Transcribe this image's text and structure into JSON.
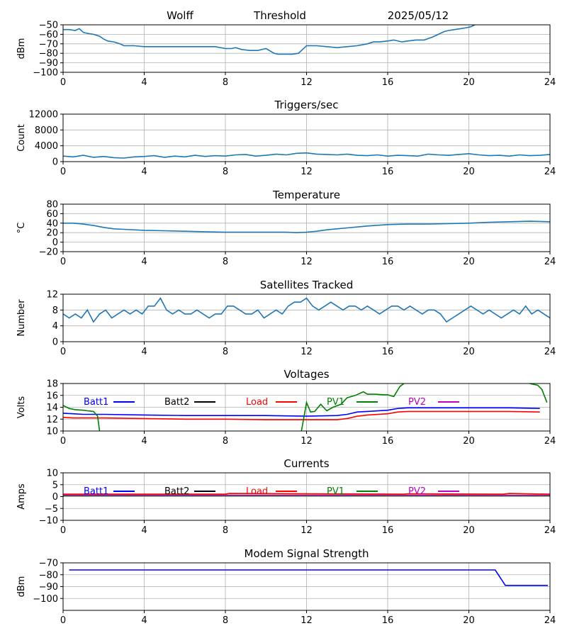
{
  "header": {
    "station": "Wolff",
    "title": "Threshold",
    "date": "2025/05/12"
  },
  "chart_data": [
    {
      "type": "line",
      "title": "",
      "xlabel": "",
      "ylabel": "dBm",
      "xlim": [
        0,
        24
      ],
      "xticks": [
        "0",
        "4",
        "8",
        "12",
        "16",
        "20",
        "24"
      ],
      "ylim": [
        -100,
        -50
      ],
      "yticks": [
        "−100",
        "−90",
        "−80",
        "−70",
        "−60",
        "−50"
      ],
      "grid": true,
      "series": [
        {
          "color": "#1f77b4",
          "x": [
            0,
            0.3,
            0.6,
            0.8,
            1.0,
            1.2,
            1.5,
            1.8,
            2.0,
            2.2,
            2.5,
            2.8,
            3.0,
            3.5,
            4.0,
            5.0,
            6.0,
            7.0,
            7.5,
            8.0,
            8.3,
            8.5,
            8.8,
            9.2,
            9.6,
            10.0,
            10.4,
            10.6,
            10.8,
            11.0,
            11.3,
            11.6,
            11.8,
            12.0,
            12.5,
            13.0,
            13.5,
            14.0,
            14.5,
            15.0,
            15.3,
            15.6,
            16.0,
            16.3,
            16.7,
            17.0,
            17.4,
            17.8,
            18.2,
            18.5,
            18.8,
            19.0,
            19.3,
            19.6,
            19.9,
            20.1,
            20.3
          ],
          "y": [
            -55,
            -55,
            -56,
            -54,
            -58,
            -59,
            -60,
            -62,
            -65,
            -67,
            -68,
            -70,
            -72,
            -72,
            -73,
            -73,
            -73,
            -73,
            -73,
            -75,
            -75,
            -74,
            -76,
            -77,
            -77,
            -75,
            -80,
            -81,
            -81,
            -81,
            -81,
            -80,
            -76,
            -72,
            -72,
            -73,
            -74,
            -73,
            -72,
            -70,
            -68,
            -68,
            -67,
            -66,
            -68,
            -67,
            -66,
            -66,
            -63,
            -60,
            -57,
            -56,
            -55,
            -54,
            -53,
            -52,
            -50
          ]
        }
      ]
    },
    {
      "type": "line",
      "title": "Triggers/sec",
      "xlabel": "",
      "ylabel": "Count",
      "xlim": [
        0,
        24
      ],
      "xticks": [
        "0",
        "4",
        "8",
        "12",
        "16",
        "20",
        "24"
      ],
      "ylim": [
        0,
        12000
      ],
      "yticks": [
        "0",
        "4000",
        "8000",
        "12000"
      ],
      "grid": true,
      "series": [
        {
          "color": "#1f77b4",
          "x": [
            0,
            0.5,
            1.0,
            1.5,
            2.0,
            2.5,
            3.0,
            3.5,
            4.0,
            4.5,
            5.0,
            5.5,
            6.0,
            6.5,
            7.0,
            7.5,
            8.0,
            8.5,
            9.0,
            9.5,
            10.0,
            10.5,
            11.0,
            11.5,
            12.0,
            12.5,
            13.0,
            13.5,
            14.0,
            14.5,
            15.0,
            15.5,
            16.0,
            16.5,
            17.0,
            17.5,
            18.0,
            18.5,
            19.0,
            19.5,
            20.0,
            20.5,
            21.0,
            21.5,
            22.0,
            22.5,
            23.0,
            23.5,
            24.0
          ],
          "y": [
            1400,
            1200,
            1600,
            1100,
            1300,
            1000,
            900,
            1200,
            1300,
            1500,
            1100,
            1400,
            1200,
            1600,
            1300,
            1500,
            1400,
            1700,
            1800,
            1400,
            1600,
            1900,
            1700,
            2100,
            2200,
            1900,
            1800,
            1700,
            1900,
            1600,
            1500,
            1700,
            1400,
            1600,
            1500,
            1400,
            1900,
            1700,
            1600,
            1800,
            2000,
            1700,
            1500,
            1600,
            1400,
            1700,
            1500,
            1600,
            1800
          ]
        }
      ]
    },
    {
      "type": "line",
      "title": "Temperature",
      "xlabel": "",
      "ylabel": "°C",
      "xlim": [
        0,
        24
      ],
      "xticks": [
        "0",
        "4",
        "8",
        "12",
        "16",
        "20",
        "24"
      ],
      "ylim": [
        -20,
        80
      ],
      "yticks": [
        "−20",
        "0",
        "20",
        "40",
        "60",
        "80"
      ],
      "grid": true,
      "series": [
        {
          "color": "#1f77b4",
          "x": [
            0,
            0.5,
            1.0,
            1.5,
            2.0,
            2.5,
            3.0,
            4.0,
            5.0,
            6.0,
            7.0,
            8.0,
            9.0,
            10.0,
            11.0,
            11.5,
            12.0,
            12.5,
            13.0,
            13.5,
            14.0,
            15.0,
            16.0,
            17.0,
            18.0,
            19.0,
            20.0,
            21.0,
            22.0,
            23.0,
            24.0
          ],
          "y": [
            40,
            40,
            38,
            35,
            31,
            28,
            27,
            25,
            24,
            23,
            22,
            21,
            21,
            21,
            21,
            20,
            21,
            23,
            26,
            28,
            30,
            34,
            37,
            38,
            38,
            39,
            40,
            42,
            43,
            44,
            43
          ]
        }
      ]
    },
    {
      "type": "line",
      "title": "Satellites Tracked",
      "xlabel": "",
      "ylabel": "Number",
      "xlim": [
        0,
        24
      ],
      "xticks": [
        "0",
        "4",
        "8",
        "12",
        "16",
        "20",
        "24"
      ],
      "ylim": [
        0,
        12
      ],
      "yticks": [
        "0",
        "4",
        "8",
        "12"
      ],
      "grid": true,
      "series": [
        {
          "color": "#1f77b4",
          "x": [
            0,
            0.3,
            0.6,
            0.9,
            1.2,
            1.5,
            1.8,
            2.1,
            2.4,
            2.7,
            3.0,
            3.3,
            3.6,
            3.9,
            4.2,
            4.5,
            4.8,
            5.1,
            5.4,
            5.7,
            6.0,
            6.3,
            6.6,
            6.9,
            7.2,
            7.5,
            7.8,
            8.1,
            8.4,
            8.7,
            9.0,
            9.3,
            9.6,
            9.9,
            10.2,
            10.5,
            10.8,
            11.1,
            11.4,
            11.7,
            12.0,
            12.3,
            12.6,
            12.9,
            13.2,
            13.5,
            13.8,
            14.1,
            14.4,
            14.7,
            15.0,
            15.3,
            15.6,
            15.9,
            16.2,
            16.5,
            16.8,
            17.1,
            17.4,
            17.7,
            18.0,
            18.3,
            18.6,
            18.9,
            19.2,
            19.5,
            19.8,
            20.1,
            20.4,
            20.7,
            21.0,
            21.3,
            21.6,
            21.9,
            22.2,
            22.5,
            22.8,
            23.1,
            23.4,
            23.7,
            24.0
          ],
          "y": [
            7,
            6,
            7,
            6,
            8,
            5,
            7,
            8,
            6,
            7,
            8,
            7,
            8,
            7,
            9,
            9,
            11,
            8,
            7,
            8,
            7,
            7,
            8,
            7,
            6,
            7,
            7,
            9,
            9,
            8,
            7,
            7,
            8,
            6,
            7,
            8,
            7,
            9,
            10,
            10,
            11,
            9,
            8,
            9,
            10,
            9,
            8,
            9,
            9,
            8,
            9,
            8,
            7,
            8,
            9,
            9,
            8,
            9,
            8,
            7,
            8,
            8,
            7,
            5,
            6,
            7,
            8,
            9,
            8,
            7,
            8,
            7,
            6,
            7,
            8,
            7,
            9,
            7,
            8,
            7,
            6
          ]
        }
      ]
    },
    {
      "type": "line",
      "title": "Voltages",
      "xlabel": "",
      "ylabel": "Volts",
      "xlim": [
        0,
        24
      ],
      "xticks": [
        "0",
        "4",
        "8",
        "12",
        "16",
        "20",
        "24"
      ],
      "ylim": [
        10,
        18
      ],
      "yticks": [
        "10",
        "12",
        "14",
        "16",
        "18"
      ],
      "grid": true,
      "legend": "top, inline",
      "series": [
        {
          "name": "Batt1",
          "color": "#0000ff",
          "x": [
            0,
            0.5,
            1.0,
            2.0,
            4.0,
            6.0,
            8.0,
            10.0,
            12.0,
            13.5,
            14.0,
            14.5,
            15.0,
            16.0,
            16.5,
            17.0,
            18.0,
            20.0,
            22.0,
            23.5
          ],
          "y": [
            13.0,
            12.9,
            12.8,
            12.8,
            12.7,
            12.6,
            12.6,
            12.6,
            12.5,
            12.6,
            12.8,
            13.2,
            13.3,
            13.5,
            13.8,
            13.9,
            13.9,
            13.9,
            13.9,
            13.8
          ]
        },
        {
          "name": "Batt2",
          "color": "#000000",
          "x": [],
          "y": []
        },
        {
          "name": "Load",
          "color": "#ff0000",
          "x": [
            0,
            0.5,
            1.0,
            2.0,
            4.0,
            6.0,
            8.0,
            10.0,
            12.0,
            13.5,
            14.0,
            14.5,
            15.0,
            16.0,
            16.5,
            17.0,
            18.0,
            20.0,
            22.0,
            23.5
          ],
          "y": [
            12.3,
            12.2,
            12.2,
            12.2,
            12.1,
            12.0,
            12.0,
            11.9,
            11.9,
            11.9,
            12.1,
            12.5,
            12.7,
            12.9,
            13.2,
            13.3,
            13.3,
            13.3,
            13.3,
            13.2
          ],
          "segments": null
        },
        {
          "name": "PV1",
          "color": "#008000",
          "x": [
            0,
            0.3,
            0.6,
            1.0,
            1.2,
            1.5,
            1.7,
            1.8,
            11.75,
            12.0,
            12.2,
            12.4,
            12.7,
            13.0,
            13.3,
            13.7,
            14.0,
            14.4,
            14.8,
            15.0,
            15.4,
            15.8,
            16.0,
            16.3,
            16.6,
            16.8,
            23.0,
            23.4,
            23.6,
            23.85
          ],
          "y": [
            14.3,
            13.8,
            13.6,
            13.5,
            13.4,
            13.3,
            12.5,
            10.0,
            10.0,
            14.8,
            13.2,
            13.3,
            14.5,
            13.4,
            14.0,
            14.5,
            15.6,
            16.0,
            16.6,
            16.2,
            16.2,
            16.1,
            16.1,
            15.8,
            17.5,
            18.0,
            18.0,
            17.7,
            17.0,
            14.8
          ],
          "breaks": [
            8,
            26
          ]
        },
        {
          "name": "PV2",
          "color": "#bf00bf",
          "x": [],
          "y": []
        }
      ]
    },
    {
      "type": "line",
      "title": "Currents",
      "xlabel": "",
      "ylabel": "Amps",
      "xlim": [
        0,
        24
      ],
      "xticks": [
        "0",
        "4",
        "8",
        "12",
        "16",
        "20",
        "24"
      ],
      "ylim": [
        -10,
        10
      ],
      "yticks": [
        "−10",
        "−5",
        "0",
        "5",
        "10"
      ],
      "grid": true,
      "legend": "top, inline",
      "series": [
        {
          "name": "Batt1",
          "color": "#0000ff",
          "x": [
            0,
            24
          ],
          "y": [
            0.5,
            0.5
          ]
        },
        {
          "name": "Batt2",
          "color": "#000000",
          "x": [],
          "y": []
        },
        {
          "name": "Load",
          "color": "#ff0000",
          "x": [
            0,
            8,
            8.2,
            16.8,
            17,
            21.7,
            22,
            24
          ],
          "y": [
            1.0,
            1.0,
            1.3,
            1.0,
            1.2,
            1.0,
            1.3,
            1.0
          ]
        },
        {
          "name": "PV1",
          "color": "#008000",
          "x": [
            0,
            24
          ],
          "y": [
            0.3,
            0.3
          ]
        },
        {
          "name": "PV2",
          "color": "#bf00bf",
          "x": [
            0,
            24
          ],
          "y": [
            0.6,
            0.6
          ]
        }
      ]
    },
    {
      "type": "line",
      "title": "Modem Signal Strength",
      "xlabel": "",
      "ylabel": "dBm",
      "xlim": [
        0,
        24
      ],
      "xticks": [
        "0",
        "4",
        "8",
        "12",
        "16",
        "20",
        "24"
      ],
      "ylim": [
        -110,
        -70
      ],
      "yticks": [
        "−100",
        "−90",
        "−80",
        "−70"
      ],
      "grid": true,
      "series": [
        {
          "color": "#0000ff",
          "x": [
            0.3,
            21.3,
            21.8,
            23.9
          ],
          "y": [
            -76,
            -76,
            -89,
            -89
          ]
        }
      ]
    }
  ]
}
